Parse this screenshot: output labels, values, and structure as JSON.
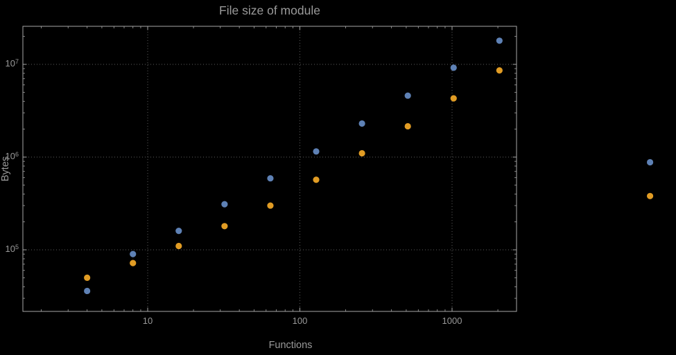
{
  "colors": {
    "background": "#000000",
    "frame": "#a7a7a7",
    "grid": "#5f5f5f",
    "label": "#9a9a9a",
    "series_blue": "#5e81b5",
    "series_orange": "#e19c24"
  },
  "chart_data": {
    "type": "scatter",
    "title": "File size of module",
    "xlabel": "Functions",
    "ylabel": "Bytes",
    "x_scale": "log",
    "y_scale": "log",
    "grid": "dotted-major",
    "legend": "none",
    "xlim": [
      1.55,
      2650
    ],
    "ylim": [
      22000,
      26500000
    ],
    "x_ticks": [
      {
        "value": 10,
        "label": "10"
      },
      {
        "value": 100,
        "label": "100"
      },
      {
        "value": 1000,
        "label": "1000"
      }
    ],
    "y_ticks": [
      {
        "value": 100000,
        "base": "10",
        "exp": "5"
      },
      {
        "value": 1000000,
        "base": "10",
        "exp": "6"
      },
      {
        "value": 10000000,
        "base": "10",
        "exp": "7"
      }
    ],
    "series": [
      {
        "color": "#5e81b5",
        "points": [
          {
            "x": 4,
            "y": 36000
          },
          {
            "x": 8,
            "y": 90000
          },
          {
            "x": 16,
            "y": 160000
          },
          {
            "x": 32,
            "y": 310000
          },
          {
            "x": 64,
            "y": 590000
          },
          {
            "x": 128,
            "y": 1150000
          },
          {
            "x": 256,
            "y": 2300000
          },
          {
            "x": 512,
            "y": 4600000
          },
          {
            "x": 1024,
            "y": 9200000
          },
          {
            "x": 2048,
            "y": 18000000
          },
          {
            "x": 20000,
            "y": 880000
          }
        ]
      },
      {
        "color": "#e19c24",
        "points": [
          {
            "x": 4,
            "y": 50000
          },
          {
            "x": 8,
            "y": 72000
          },
          {
            "x": 16,
            "y": 110000
          },
          {
            "x": 32,
            "y": 180000
          },
          {
            "x": 64,
            "y": 300000
          },
          {
            "x": 128,
            "y": 570000
          },
          {
            "x": 256,
            "y": 1100000
          },
          {
            "x": 512,
            "y": 2150000
          },
          {
            "x": 1024,
            "y": 4300000
          },
          {
            "x": 2048,
            "y": 8600000
          },
          {
            "x": 20000,
            "y": 380000
          }
        ]
      }
    ]
  }
}
